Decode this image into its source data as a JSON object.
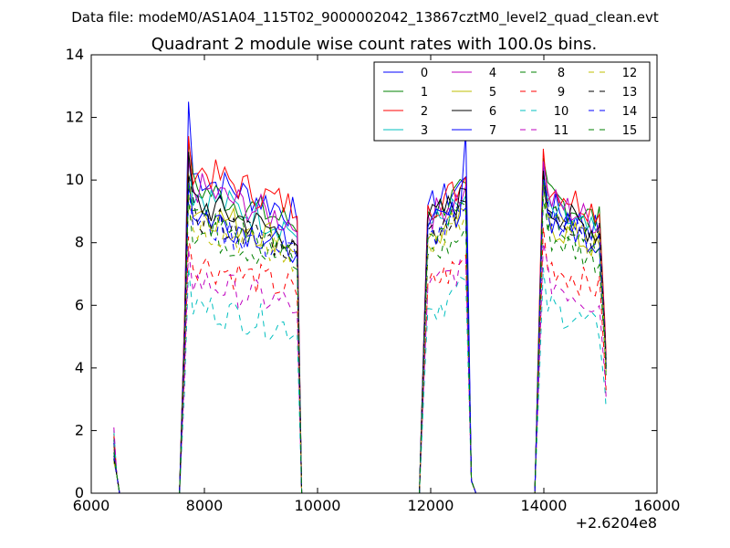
{
  "suptitle": "Data file: modeM0/AS1A04_115T02_9000002042_13867cztM0_level2_quad_clean.evt",
  "chart_data": {
    "type": "line",
    "title": "Quadrant 2 module wise count rates with 100.0s bins.",
    "xlabel": "",
    "ylabel": "",
    "x_offset_label": "+2.6204e8",
    "xlim": [
      6000,
      16000
    ],
    "ylim": [
      0,
      14
    ],
    "xticks": [
      "6000",
      "8000",
      "10000",
      "12000",
      "14000",
      "16000"
    ],
    "yticks": [
      "0",
      "2",
      "4",
      "6",
      "8",
      "10",
      "12",
      "14"
    ],
    "legend_position": "upper-right",
    "legend_columns": 4,
    "segments": [
      {
        "start": 6400,
        "end": 6500
      },
      {
        "start": 7620,
        "end": 9680
      },
      {
        "start": 11850,
        "end": 12780
      },
      {
        "start": 13880,
        "end": 15100
      }
    ],
    "series": [
      {
        "name": "0",
        "style": "solid",
        "color": "#0000ff",
        "level": 10.2,
        "peak": 12.5,
        "level3": 9.2,
        "level4": 9.2
      },
      {
        "name": "1",
        "style": "solid",
        "color": "#008000",
        "level": 9.8,
        "peak": 11.2,
        "level3": 9.0,
        "level4": 9.5
      },
      {
        "name": "2",
        "style": "solid",
        "color": "#ff0000",
        "level": 10.4,
        "peak": 11.4,
        "level3": 9.2,
        "level4": 9.8
      },
      {
        "name": "3",
        "style": "solid",
        "color": "#00bfbf",
        "level": 9.6,
        "peak": 10.8,
        "level3": 8.6,
        "level4": 9.0
      },
      {
        "name": "4",
        "style": "solid",
        "color": "#bf00bf",
        "level": 9.8,
        "peak": 10.6,
        "level3": 8.9,
        "level4": 9.4
      },
      {
        "name": "5",
        "style": "solid",
        "color": "#bfbf00",
        "level": 9.1,
        "peak": 10.2,
        "level3": 8.1,
        "level4": 8.6
      },
      {
        "name": "6",
        "style": "solid",
        "color": "#000000",
        "level": 9.3,
        "peak": 10.9,
        "level3": 8.8,
        "level4": 9.1
      },
      {
        "name": "7",
        "style": "solid",
        "color": "#0000ff",
        "level": 9.0,
        "peak": 10.0,
        "level3": 8.5,
        "level4": 8.8
      },
      {
        "name": "8",
        "style": "dashed",
        "color": "#008000",
        "level": 8.4,
        "peak": 9.4,
        "level3": 7.6,
        "level4": 8.2
      },
      {
        "name": "9",
        "style": "dashed",
        "color": "#ff0000",
        "level": 7.4,
        "peak": 8.2,
        "level3": 6.7,
        "level4": 7.3
      },
      {
        "name": "10",
        "style": "dashed",
        "color": "#00bfbf",
        "level": 6.0,
        "peak": 7.2,
        "level3": 5.9,
        "level4": 6.0
      },
      {
        "name": "11",
        "style": "dashed",
        "color": "#bf00bf",
        "level": 6.8,
        "peak": 7.8,
        "level3": 6.6,
        "level4": 6.8
      },
      {
        "name": "12",
        "style": "dashed",
        "color": "#bfbf00",
        "level": 8.6,
        "peak": 9.6,
        "level3": 8.0,
        "level4": 8.7
      },
      {
        "name": "13",
        "style": "dashed",
        "color": "#000000",
        "level": 8.9,
        "peak": 10.2,
        "level3": 8.4,
        "level4": 9.0
      },
      {
        "name": "14",
        "style": "dashed",
        "color": "#0000ff",
        "level": 8.7,
        "peak": 9.8,
        "level3": 8.2,
        "level4": 8.9
      },
      {
        "name": "15",
        "style": "dashed",
        "color": "#008000",
        "level": 8.8,
        "peak": 9.9,
        "level3": 8.3,
        "level4": 8.8
      }
    ]
  }
}
